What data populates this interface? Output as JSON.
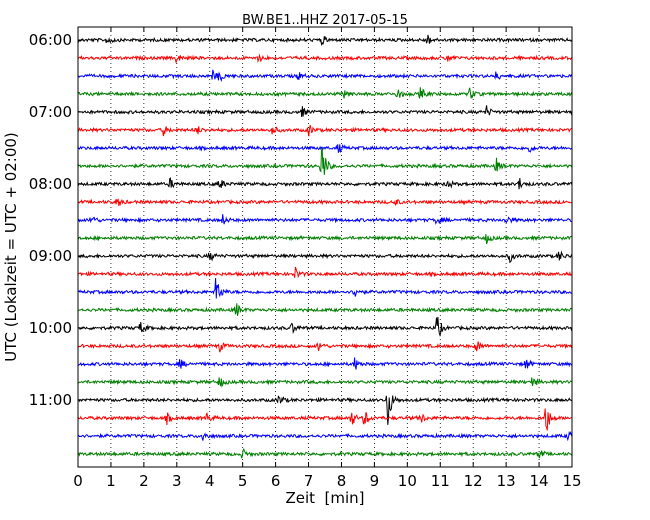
{
  "chart_data": {
    "type": "line",
    "chart_kind": "dayplot seismogram",
    "title": "BW.BE1..HHZ 2017-05-15",
    "xlabel": "Zeit  [min]",
    "ylabel": "UTC (Lokalzeit = UTC + 02:00)",
    "xlim": [
      0,
      15
    ],
    "x_ticks": [
      "0",
      "1",
      "2",
      "3",
      "4",
      "5",
      "6",
      "7",
      "8",
      "9",
      "10",
      "11",
      "12",
      "13",
      "14",
      "15"
    ],
    "y_ticks": [
      "06:00",
      "07:00",
      "08:00",
      "09:00",
      "10:00",
      "11:00"
    ],
    "row_interval_minutes": 15,
    "grid": "vertical dotted",
    "trace_colors": [
      "#000000",
      "#ff0000",
      "#0000ff",
      "#008000"
    ],
    "rows": [
      {
        "start": "06:00",
        "events": [
          [
            0.9,
            0.35
          ],
          [
            7.4,
            0.3
          ],
          [
            10.6,
            0.35
          ]
        ]
      },
      {
        "start": "06:15",
        "events": [
          [
            3.0,
            0.3
          ],
          [
            5.5,
            0.25
          ],
          [
            11.2,
            0.25
          ]
        ]
      },
      {
        "start": "06:30",
        "events": [
          [
            4.1,
            0.3
          ],
          [
            4.3,
            0.3
          ],
          [
            6.7,
            0.25
          ],
          [
            12.7,
            0.25
          ]
        ]
      },
      {
        "start": "06:45",
        "events": [
          [
            8.1,
            0.3
          ],
          [
            9.7,
            0.35
          ],
          [
            10.4,
            0.4
          ],
          [
            11.9,
            0.4
          ]
        ]
      },
      {
        "start": "07:00",
        "events": [
          [
            6.8,
            0.3
          ],
          [
            12.4,
            0.35
          ]
        ]
      },
      {
        "start": "07:15",
        "events": [
          [
            2.6,
            0.3
          ],
          [
            3.6,
            0.3
          ],
          [
            5.9,
            0.3
          ],
          [
            7.0,
            0.35
          ]
        ]
      },
      {
        "start": "07:30",
        "events": [
          [
            7.9,
            0.3
          ],
          [
            13.7,
            0.25
          ]
        ]
      },
      {
        "start": "07:45",
        "events": [
          [
            7.4,
            1.6
          ],
          [
            12.7,
            0.4
          ]
        ]
      },
      {
        "start": "08:00",
        "events": [
          [
            2.8,
            0.3
          ],
          [
            4.3,
            0.35
          ],
          [
            11.2,
            0.35
          ],
          [
            13.4,
            0.35
          ]
        ]
      },
      {
        "start": "08:15",
        "events": [
          [
            1.2,
            0.25
          ],
          [
            9.6,
            0.25
          ]
        ]
      },
      {
        "start": "08:30",
        "events": [
          [
            0.4,
            0.35
          ],
          [
            4.4,
            0.3
          ],
          [
            10.9,
            0.3
          ],
          [
            13.0,
            0.3
          ]
        ]
      },
      {
        "start": "08:45",
        "events": [
          [
            12.4,
            0.3
          ]
        ]
      },
      {
        "start": "09:00",
        "events": [
          [
            4.0,
            0.3
          ],
          [
            13.1,
            0.35
          ],
          [
            14.6,
            0.35
          ]
        ]
      },
      {
        "start": "09:15",
        "events": [
          [
            6.6,
            0.35
          ]
        ]
      },
      {
        "start": "09:30",
        "events": [
          [
            4.2,
            1.1
          ],
          [
            8.4,
            0.35
          ]
        ]
      },
      {
        "start": "09:45",
        "events": [
          [
            4.8,
            0.45
          ]
        ]
      },
      {
        "start": "10:00",
        "events": [
          [
            1.9,
            0.35
          ],
          [
            6.5,
            0.3
          ],
          [
            10.9,
            0.9
          ]
        ]
      },
      {
        "start": "10:15",
        "events": [
          [
            4.3,
            0.3
          ],
          [
            7.3,
            0.3
          ],
          [
            12.1,
            0.4
          ]
        ]
      },
      {
        "start": "10:30",
        "events": [
          [
            3.1,
            0.3
          ],
          [
            8.4,
            0.4
          ],
          [
            13.6,
            0.35
          ]
        ]
      },
      {
        "start": "10:45",
        "events": [
          [
            4.3,
            0.35
          ],
          [
            13.8,
            0.3
          ]
        ]
      },
      {
        "start": "11:00",
        "events": [
          [
            6.1,
            0.3
          ],
          [
            9.4,
            1.6
          ]
        ]
      },
      {
        "start": "11:15",
        "events": [
          [
            2.7,
            0.3
          ],
          [
            3.9,
            0.3
          ],
          [
            8.3,
            0.5
          ],
          [
            8.7,
            0.5
          ],
          [
            10.4,
            0.35
          ],
          [
            14.2,
            1.2
          ]
        ]
      },
      {
        "start": "11:30",
        "events": [
          [
            3.8,
            0.3
          ],
          [
            14.9,
            0.3
          ]
        ]
      },
      {
        "start": "11:45",
        "events": [
          [
            5.0,
            0.3
          ],
          [
            14.0,
            0.3
          ]
        ]
      }
    ]
  }
}
